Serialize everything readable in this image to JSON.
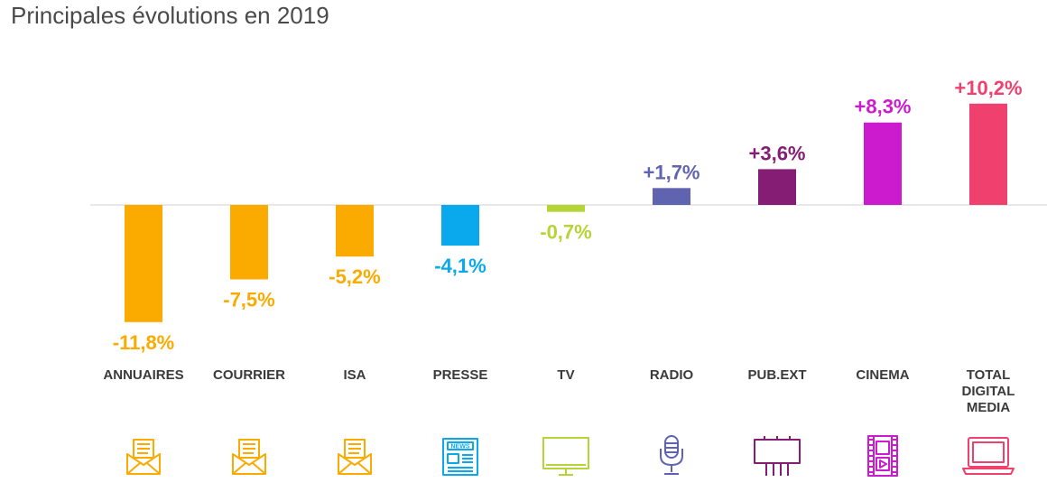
{
  "title": "Principales évolutions en 2019",
  "chart_data": {
    "type": "bar",
    "categories": [
      "ANNUAIRES",
      "COURRIER",
      "ISA",
      "PRESSE",
      "TV",
      "RADIO",
      "PUB.EXT",
      "CINEMA",
      "TOTAL DIGITAL MEDIA"
    ],
    "category_lines": [
      [
        "ANNUAIRES"
      ],
      [
        "COURRIER"
      ],
      [
        "ISA"
      ],
      [
        "PRESSE"
      ],
      [
        "TV"
      ],
      [
        "RADIO"
      ],
      [
        "PUB.EXT"
      ],
      [
        "CINEMA"
      ],
      [
        "TOTAL",
        "DIGITAL",
        "MEDIA"
      ]
    ],
    "values": [
      -11.8,
      -7.5,
      -5.2,
      -4.1,
      -0.7,
      1.7,
      3.6,
      8.3,
      10.2
    ],
    "value_labels": [
      "-11,8%",
      "-7,5%",
      "-5,2%",
      "-4,1%",
      "-0,7%",
      "+1,7%",
      "+3,6%",
      "+8,3%",
      "+10,2%"
    ],
    "colors": [
      "#FBAA00",
      "#FBAA00",
      "#FBAA00",
      "#0AA9EE",
      "#B5D435",
      "#6063B0",
      "#851D75",
      "#CC1ACE",
      "#F0406E"
    ],
    "icons": [
      "envelope-letter-icon",
      "envelope-letter-icon",
      "envelope-letter-icon",
      "newspaper-icon",
      "tv-icon",
      "microphone-icon",
      "billboard-icon",
      "film-strip-icon",
      "laptop-icon"
    ],
    "unit": "%",
    "grid": false,
    "legend": "none"
  }
}
